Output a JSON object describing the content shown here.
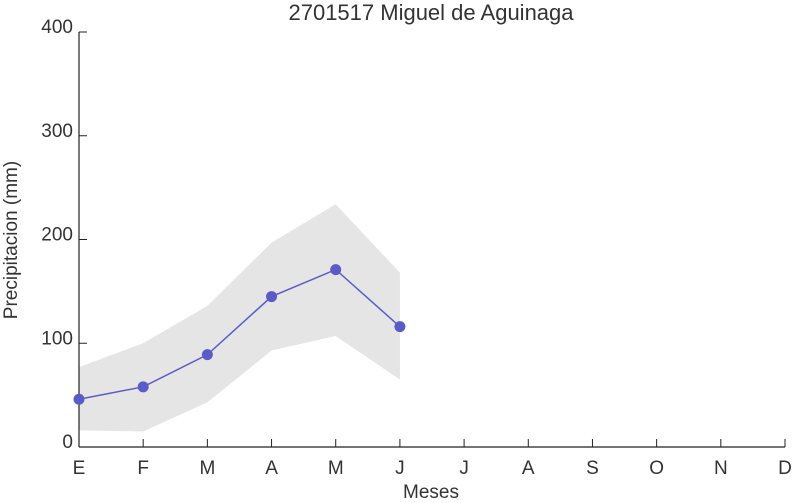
{
  "chart_data": {
    "type": "line",
    "title": "2701517 Miguel de Aguinaga",
    "xlabel": "Meses",
    "ylabel": "Precipitacion (mm)",
    "categories": [
      "E",
      "F",
      "M",
      "A",
      "M",
      "J",
      "J",
      "A",
      "S",
      "O",
      "N",
      "D"
    ],
    "series": [
      {
        "color": "#5b5bc8",
        "values": [
          46,
          58,
          89,
          145,
          171,
          116,
          null,
          null,
          null,
          null,
          null,
          null
        ]
      }
    ],
    "band": {
      "color": "#e5e5e5",
      "upper": [
        77,
        100,
        136,
        197,
        234,
        168,
        null,
        null,
        null,
        null,
        null,
        null
      ],
      "lower": [
        16,
        15,
        43,
        93,
        107,
        65,
        null,
        null,
        null,
        null,
        null,
        null
      ]
    },
    "ylim": [
      0,
      400
    ],
    "yticks": [
      0,
      100,
      200,
      300,
      400
    ]
  }
}
